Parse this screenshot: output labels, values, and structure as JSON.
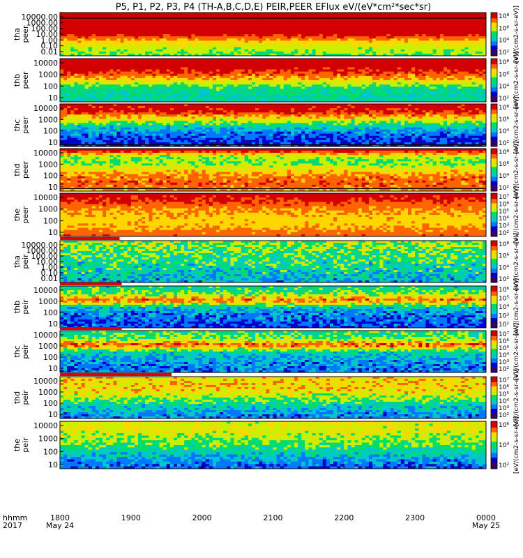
{
  "chart_data": {
    "type": "heatmap",
    "title": "P5, P1, P2, P3, P4 (TH-A,B,C,D,E) PEIR,PEER EFlux eV/(eV*cm",
    "title_sup": "2",
    "title_end": "*sec*sr)",
    "time_label_top": "hhmm",
    "time_label_bottom": "2017",
    "time_ticks": [
      {
        "label": "1800",
        "sub": "May 24"
      },
      {
        "label": "1900",
        "sub": ""
      },
      {
        "label": "2000",
        "sub": ""
      },
      {
        "label": "2100",
        "sub": ""
      },
      {
        "label": "2200",
        "sub": ""
      },
      {
        "label": "2300",
        "sub": ""
      },
      {
        "label": "0000",
        "sub": "May 25"
      }
    ],
    "colorbar_label": "[eV/(cm2-s-sr-eV)]",
    "colormap": [
      "#3c0064",
      "#0000c8",
      "#0078ff",
      "#00c8c8",
      "#00dc6e",
      "#c8f000",
      "#ffd700",
      "#ff6400",
      "#d20000"
    ],
    "panels": [
      {
        "name": "tha peer",
        "label_line1": "tha",
        "label_line2": "peer",
        "yticks": [
          "10000.00",
          "1000.00",
          "100.00",
          "10.00",
          "1.00",
          "0.10",
          "0.01"
        ],
        "colorbar_ticks": [
          "10⁸",
          "10⁶",
          "10⁴",
          "10²"
        ],
        "profile": [
          1.0,
          1.0,
          1.0,
          0.95,
          0.75,
          0.6,
          0.55
        ],
        "noise": 0.05,
        "dark_line_y": 0.13,
        "red_bar": false
      },
      {
        "name": "thb peer",
        "label_line1": "thb",
        "label_line2": "peer",
        "yticks": [
          "10000",
          "1000",
          "100",
          "10"
        ],
        "colorbar_ticks": [
          "10⁸",
          "10⁶",
          "10⁴",
          "10²"
        ],
        "profile": [
          0.97,
          0.97,
          0.88,
          0.72,
          0.5,
          0.45,
          0.42
        ],
        "noise": 0.08,
        "dark_line_y": null,
        "red_bar": false
      },
      {
        "name": "thc peer",
        "label_line1": "thc",
        "label_line2": "peer",
        "yticks": [
          "10000",
          "1000",
          "100",
          "10"
        ],
        "colorbar_ticks": [
          "10⁸",
          "10⁶",
          "10⁴",
          "10²"
        ],
        "profile": [
          0.98,
          0.93,
          0.7,
          0.45,
          0.3,
          0.22,
          0.18
        ],
        "noise": 0.1,
        "dark_line_y": 0.96,
        "red_bar": false
      },
      {
        "name": "thd peer",
        "label_line1": "thd",
        "label_line2": "peer",
        "yticks": [
          "10000",
          "1000",
          "100",
          "10"
        ],
        "colorbar_ticks": [
          "10⁸",
          "10⁶",
          "10⁴",
          "10²"
        ],
        "profile": [
          0.98,
          0.6,
          0.55,
          0.7,
          0.82,
          0.85,
          0.8
        ],
        "noise": 0.08,
        "dark_line_y": 0.94,
        "red_bar": false
      },
      {
        "name": "the peer",
        "label_line1": "the",
        "label_line2": "peer",
        "yticks": [
          "10000",
          "1000",
          "100",
          "10"
        ],
        "colorbar_ticks": [
          "10⁷",
          "10⁶",
          "10⁵",
          "10⁴",
          "10³",
          "10²"
        ],
        "profile": [
          0.95,
          0.9,
          0.8,
          0.75,
          0.72,
          0.78,
          0.85
        ],
        "noise": 0.06,
        "dark_line_y": null,
        "red_bar": false
      },
      {
        "name": "tha peir",
        "label_line1": "tha",
        "label_line2": "peir",
        "yticks": [
          "10000.00",
          "1000.00",
          "100.00",
          "10.00",
          "1.00",
          "0.10",
          "0.01"
        ],
        "colorbar_ticks": [
          "10⁸",
          "10⁶",
          "10⁴",
          "10²"
        ],
        "profile": [
          0.6,
          0.55,
          0.5,
          0.48,
          0.45,
          0.4,
          0.35
        ],
        "noise": 0.15,
        "dark_line_y": null,
        "red_bar": true,
        "red_bar_end": 0.14
      },
      {
        "name": "thb peir",
        "label_line1": "thb",
        "label_line2": "peir",
        "yticks": [
          "10000",
          "1000",
          "100",
          "10"
        ],
        "colorbar_ticks": [
          "10⁶",
          "10⁵",
          "10⁴",
          "10³",
          "10²"
        ],
        "profile": [
          0.45,
          0.55,
          0.85,
          0.4,
          0.3,
          0.25,
          0.22
        ],
        "noise": 0.12,
        "dark_line_y": null,
        "red_bar": true,
        "red_bar_end": 0.145
      },
      {
        "name": "thc peir",
        "label_line1": "thc",
        "label_line2": "peir",
        "yticks": [
          "10000",
          "1000",
          "100",
          "10"
        ],
        "colorbar_ticks": [
          "10⁷",
          "10⁶",
          "10⁵",
          "10⁴",
          "10³",
          "10²"
        ],
        "profile": [
          0.5,
          0.55,
          0.88,
          0.45,
          0.35,
          0.3,
          0.28
        ],
        "noise": 0.12,
        "dark_line_y": null,
        "red_bar": true,
        "red_bar_end": 0.145
      },
      {
        "name": "thd peir",
        "label_line1": "thd",
        "label_line2": "peir",
        "yticks": [
          "10000",
          "1000",
          "100",
          "10"
        ],
        "colorbar_ticks": [
          "10⁷",
          "10⁶",
          "10⁵",
          "10⁴",
          "10³",
          "10²"
        ],
        "profile": [
          0.7,
          0.72,
          0.7,
          0.6,
          0.45,
          0.35,
          0.3
        ],
        "noise": 0.12,
        "dark_line_y": null,
        "red_bar": true,
        "red_bar_end": 0.262
      },
      {
        "name": "the peir",
        "label_line1": "the",
        "label_line2": "peir",
        "yticks": [
          "10000",
          "1000",
          "100",
          "10"
        ],
        "colorbar_ticks": [
          "10⁶",
          "10⁴",
          "10²"
        ],
        "profile": [
          0.65,
          0.65,
          0.6,
          0.52,
          0.42,
          0.32,
          0.25
        ],
        "noise": 0.1,
        "dark_line_y": null,
        "red_bar": false
      }
    ]
  }
}
